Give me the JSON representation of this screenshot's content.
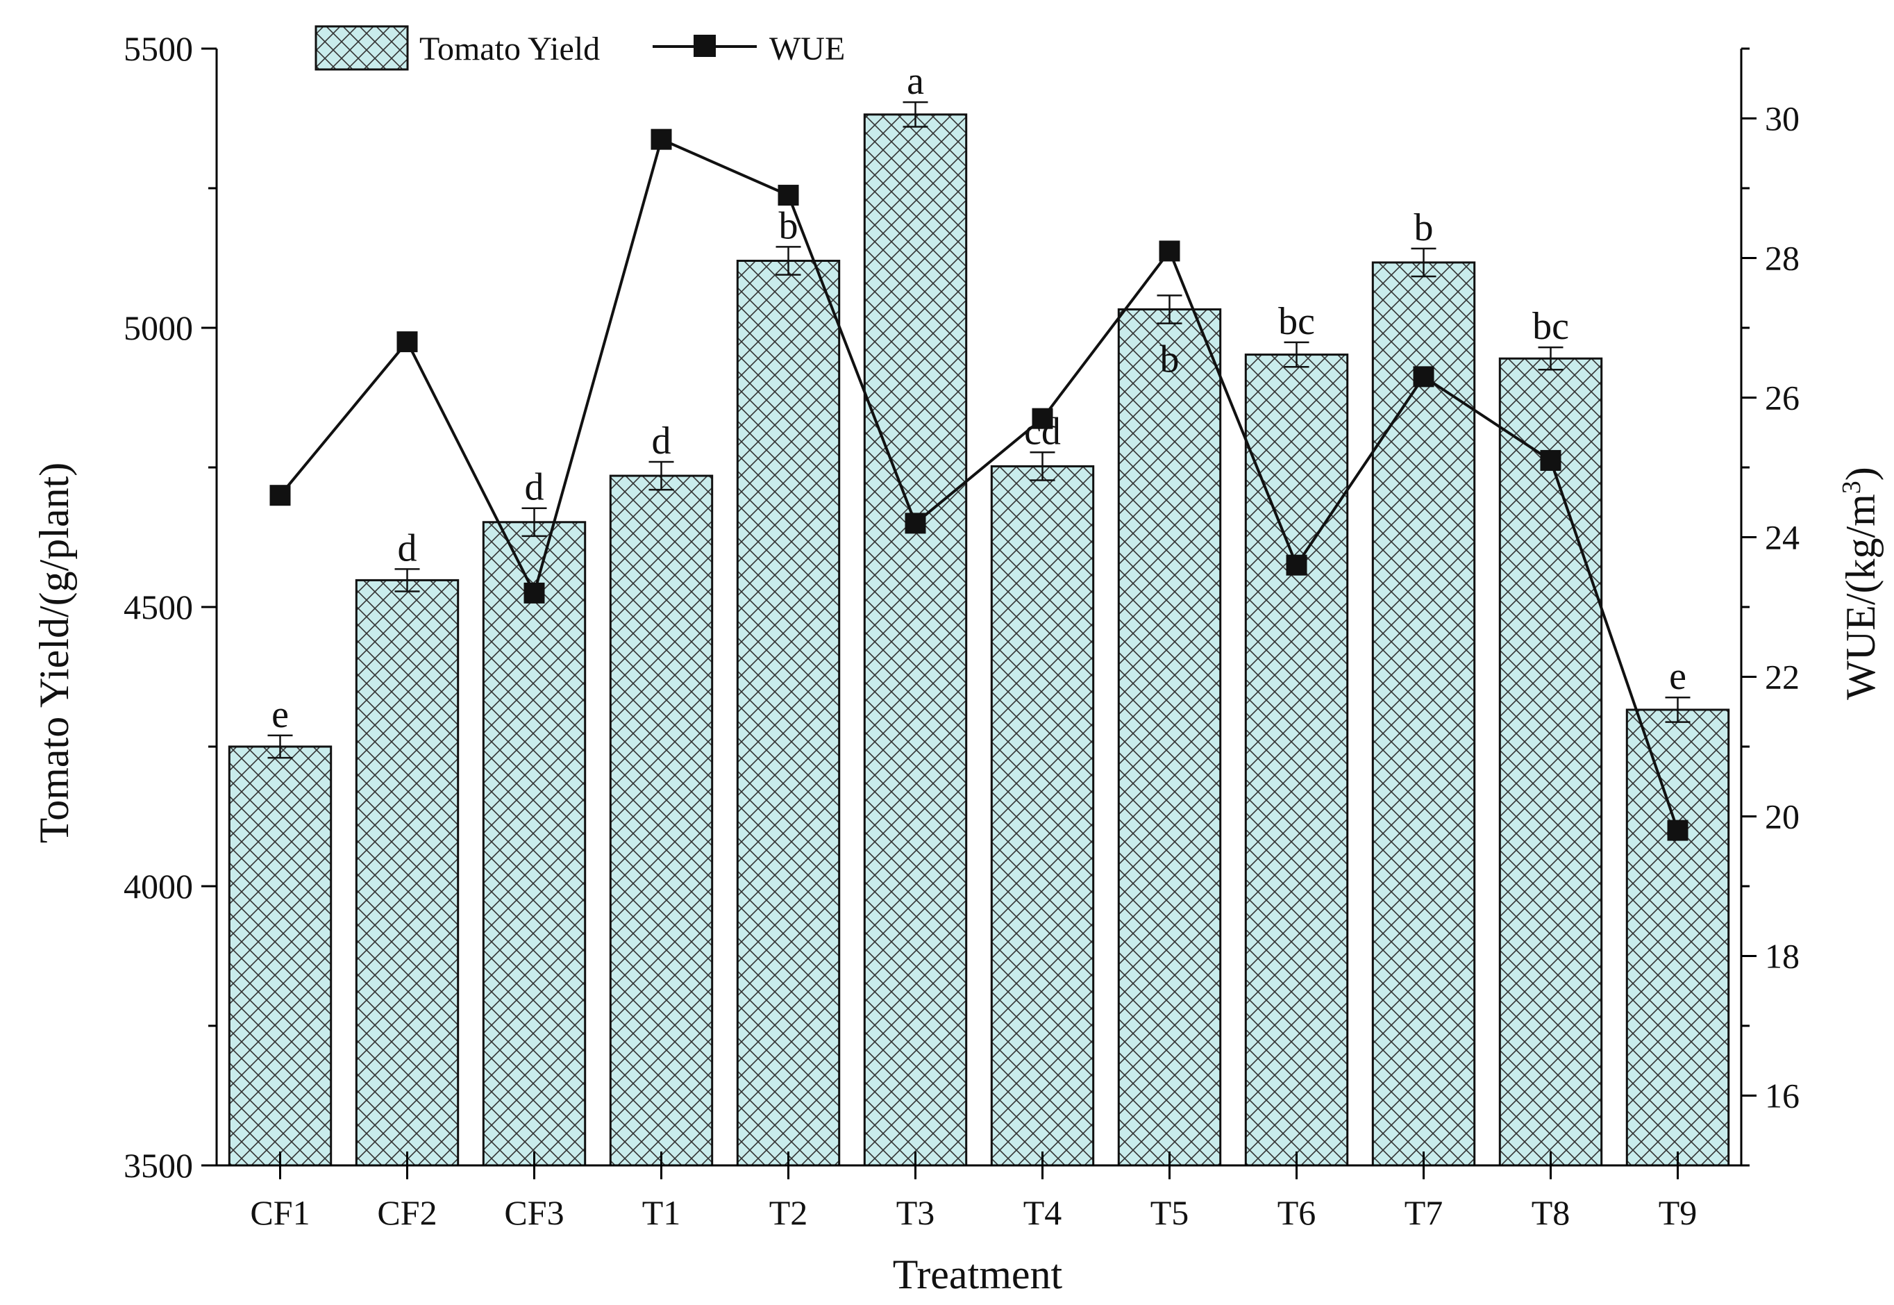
{
  "chart_data": {
    "type": "bar",
    "title": "",
    "xlabel": "Treatment",
    "ylabel": "Tomato Yield/(g/plant)",
    "y2label_base": "WUE/(kg/m",
    "y2label_sup": "3",
    "y2label_close": ")",
    "ylim": [
      3500,
      5500
    ],
    "y2lim": [
      15,
      31
    ],
    "yticks": [
      "3500",
      "4000",
      "4500",
      "5000",
      "5500"
    ],
    "y2ticks": [
      "16",
      "18",
      "20",
      "22",
      "24",
      "26",
      "28",
      "30"
    ],
    "categories": [
      "CF1",
      "CF2",
      "CF3",
      "T1",
      "T2",
      "T3",
      "T4",
      "T5",
      "T6",
      "T7",
      "T8",
      "T9"
    ],
    "series": [
      {
        "name": "Tomato Yield",
        "kind": "bar",
        "axis": "left",
        "values": [
          4250,
          4548,
          4652,
          4735,
          5120,
          5382,
          4752,
          5033,
          4952,
          5117,
          4945,
          4316
        ],
        "errors": [
          20,
          20,
          25,
          25,
          25,
          22,
          25,
          25,
          22,
          25,
          20,
          22
        ],
        "significance": [
          "e",
          "d",
          "d",
          "d",
          "b",
          "a",
          "cd",
          "b",
          "bc",
          "b",
          "bc",
          "e"
        ]
      },
      {
        "name": "WUE",
        "kind": "line",
        "axis": "right",
        "values": [
          24.6,
          26.8,
          23.2,
          29.7,
          28.9,
          24.2,
          25.7,
          28.1,
          23.6,
          26.3,
          25.1,
          19.8
        ]
      }
    ],
    "legend": [
      "Tomato Yield",
      "WUE"
    ],
    "legend_position": "top-left",
    "colors": {
      "bar_fill": "#c9ecec",
      "hatch": "#333333",
      "line": "#111111",
      "axis": "#000000"
    }
  }
}
